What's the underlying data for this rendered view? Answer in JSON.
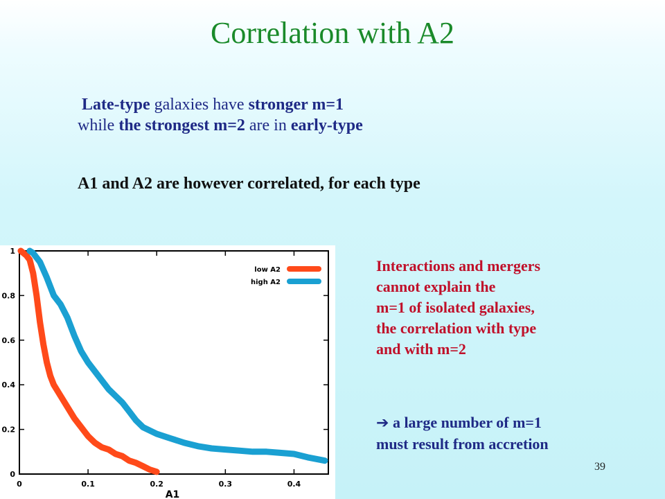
{
  "slide": {
    "title": "Correlation with A2",
    "intro": {
      "line1": {
        "a": "Late-type",
        "b": " galaxies have ",
        "c": "stronger m=1"
      },
      "line2": {
        "a": "while ",
        "b": "the strongest m=2",
        "c": " are in ",
        "d": "early-type"
      }
    },
    "correlated_text": "A1 and A2 are however correlated, for each type",
    "interactions": [
      "Interactions and mergers",
      "cannot explain the",
      "m=1 of isolated galaxies,",
      "the correlation with type",
      "and with m=2"
    ],
    "arrow_glyph": "➔",
    "conclusion": [
      " a large number of m=1",
      "must result from accretion"
    ],
    "page_number": "39"
  },
  "colors": {
    "title": "#1a8a2a",
    "low": "#ff4a1a",
    "high": "#1aa0d2"
  },
  "chart_data": {
    "type": "line",
    "title": "",
    "xlabel": "A1",
    "ylabel": "",
    "xlim": [
      0,
      0.45
    ],
    "ylim": [
      0,
      1
    ],
    "xticks": [
      0,
      0.1,
      0.2,
      0.3,
      0.4
    ],
    "xtick_labels": [
      "0",
      "0.1",
      "0.2",
      "0.3",
      "0.4"
    ],
    "yticks": [
      0,
      0.2,
      0.4,
      0.6,
      0.8,
      1
    ],
    "ytick_labels": [
      "0",
      "0.2",
      "0.4",
      "0.6",
      "0.8",
      "1"
    ],
    "legend_position": "top-right",
    "series": [
      {
        "name": "low A2",
        "color": "#ff4a1a",
        "x": [
          0.002,
          0.01,
          0.015,
          0.02,
          0.025,
          0.03,
          0.035,
          0.04,
          0.045,
          0.05,
          0.06,
          0.07,
          0.08,
          0.09,
          0.1,
          0.11,
          0.12,
          0.13,
          0.14,
          0.15,
          0.16,
          0.17,
          0.18,
          0.19,
          0.2
        ],
        "y": [
          1.0,
          0.98,
          0.96,
          0.9,
          0.8,
          0.68,
          0.58,
          0.5,
          0.44,
          0.4,
          0.35,
          0.3,
          0.25,
          0.21,
          0.17,
          0.14,
          0.12,
          0.11,
          0.09,
          0.08,
          0.06,
          0.05,
          0.035,
          0.02,
          0.01
        ]
      },
      {
        "name": "high A2",
        "color": "#1aa0d2",
        "x": [
          0.015,
          0.02,
          0.03,
          0.04,
          0.05,
          0.06,
          0.07,
          0.08,
          0.09,
          0.1,
          0.11,
          0.12,
          0.13,
          0.14,
          0.15,
          0.16,
          0.17,
          0.18,
          0.2,
          0.22,
          0.24,
          0.26,
          0.28,
          0.3,
          0.32,
          0.34,
          0.36,
          0.38,
          0.4,
          0.42,
          0.445
        ],
        "y": [
          1.0,
          0.99,
          0.95,
          0.88,
          0.8,
          0.76,
          0.7,
          0.62,
          0.55,
          0.5,
          0.46,
          0.42,
          0.38,
          0.35,
          0.32,
          0.28,
          0.24,
          0.21,
          0.18,
          0.16,
          0.14,
          0.125,
          0.115,
          0.11,
          0.105,
          0.1,
          0.1,
          0.095,
          0.09,
          0.075,
          0.06
        ]
      }
    ]
  }
}
